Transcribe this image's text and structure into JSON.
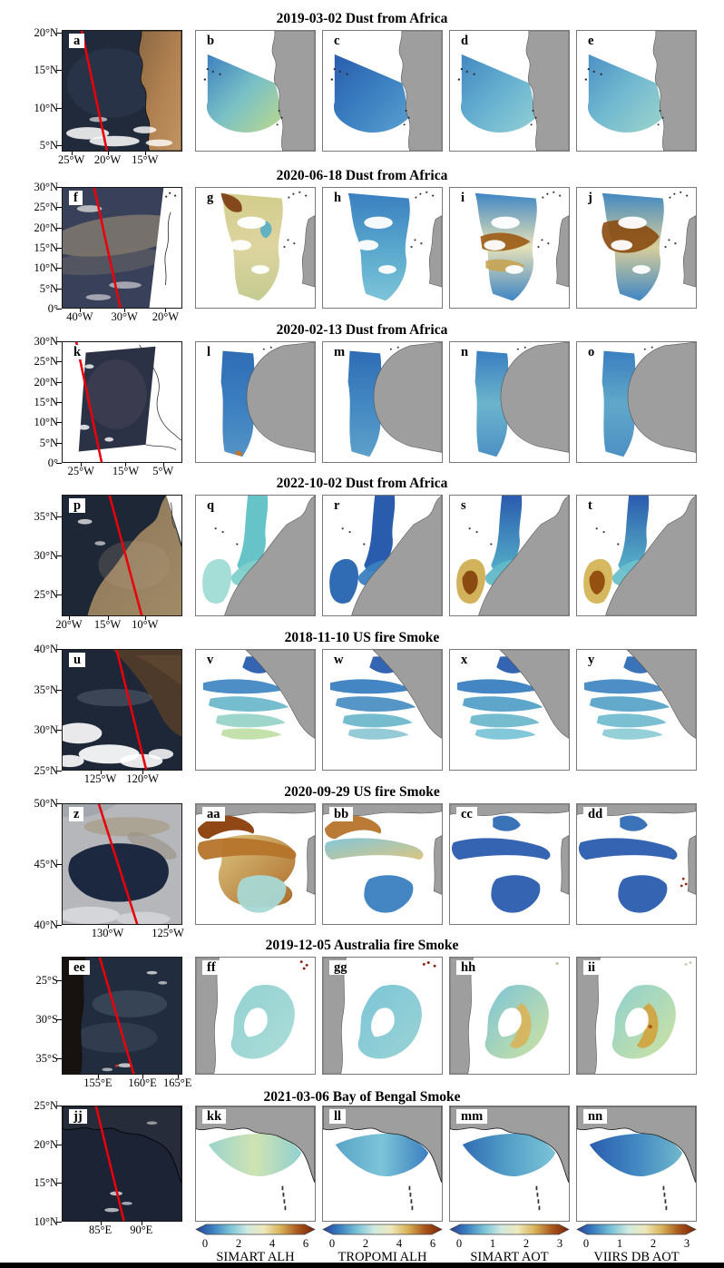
{
  "figure": {
    "rows": [
      {
        "title": "2019-03-02 Dust from Africa",
        "panel_labels": [
          "a",
          "b",
          "c",
          "d",
          "e"
        ],
        "y_ticks": [
          "20°N",
          "15°N",
          "10°N",
          "5°N"
        ],
        "x_ticks": [
          "25°W",
          "20°W",
          "15°W"
        ]
      },
      {
        "title": "2020-06-18 Dust from Africa",
        "panel_labels": [
          "f",
          "g",
          "h",
          "i",
          "j"
        ],
        "y_ticks": [
          "30°N",
          "25°N",
          "20°N",
          "15°N",
          "10°N",
          "5°N",
          "0°"
        ],
        "x_ticks": [
          "40°W",
          "30°W",
          "20°W"
        ]
      },
      {
        "title": "2020-02-13 Dust from Africa",
        "panel_labels": [
          "k",
          "l",
          "m",
          "n",
          "o"
        ],
        "y_ticks": [
          "30°N",
          "25°N",
          "20°N",
          "15°N",
          "10°N",
          "5°N",
          "0°"
        ],
        "x_ticks": [
          "25°W",
          "15°W",
          "5°W"
        ]
      },
      {
        "title": "2022-10-02 Dust from Africa",
        "panel_labels": [
          "p",
          "q",
          "r",
          "s",
          "t"
        ],
        "y_ticks": [
          "35°N",
          "30°N",
          "25°N"
        ],
        "x_ticks": [
          "20°W",
          "15°W",
          "10°W"
        ]
      },
      {
        "title": "2018-11-10 US fire Smoke",
        "panel_labels": [
          "u",
          "v",
          "w",
          "x",
          "y"
        ],
        "y_ticks": [
          "40°N",
          "35°N",
          "30°N",
          "25°N"
        ],
        "x_ticks": [
          "125°W",
          "120°W"
        ]
      },
      {
        "title": "2020-09-29 US fire Smoke",
        "panel_labels": [
          "z",
          "aa",
          "bb",
          "cc",
          "dd"
        ],
        "y_ticks": [
          "50°N",
          "45°N",
          "40°N"
        ],
        "x_ticks": [
          "130°W",
          "125°W"
        ]
      },
      {
        "title": "2019-12-05 Australia fire Smoke",
        "panel_labels": [
          "ee",
          "ff",
          "gg",
          "hh",
          "ii"
        ],
        "y_ticks": [
          "25°S",
          "30°S",
          "35°S"
        ],
        "x_ticks": [
          "155°E",
          "160°E",
          "165°E"
        ]
      },
      {
        "title": "2021-03-06 Bay of Bengal Smoke",
        "panel_labels": [
          "jj",
          "kk",
          "ll",
          "mm",
          "nn"
        ],
        "y_ticks": [
          "25°N",
          "20°N",
          "15°N",
          "10°N"
        ],
        "x_ticks": [
          "85°E",
          "90°E"
        ]
      }
    ],
    "colorbars": [
      {
        "label": "SIMART ALH",
        "ticks": [
          "0",
          "2",
          "4",
          "6"
        ]
      },
      {
        "label": "TROPOMI ALH",
        "ticks": [
          "0",
          "2",
          "4",
          "6"
        ]
      },
      {
        "label": "SIMART AOT",
        "ticks": [
          "0",
          "1",
          "2",
          "3"
        ]
      },
      {
        "label": "VIIRS DB AOT",
        "ticks": [
          "0",
          "1",
          "2",
          "3"
        ]
      }
    ],
    "colors": {
      "land": "#9e9e9e",
      "track_line": "#e8000b",
      "colormap": [
        "#27419a",
        "#3a7fc0",
        "#7cc4d8",
        "#cfe9e0",
        "#efe9bd",
        "#d9b45a",
        "#a8551a",
        "#7a2208"
      ]
    }
  }
}
